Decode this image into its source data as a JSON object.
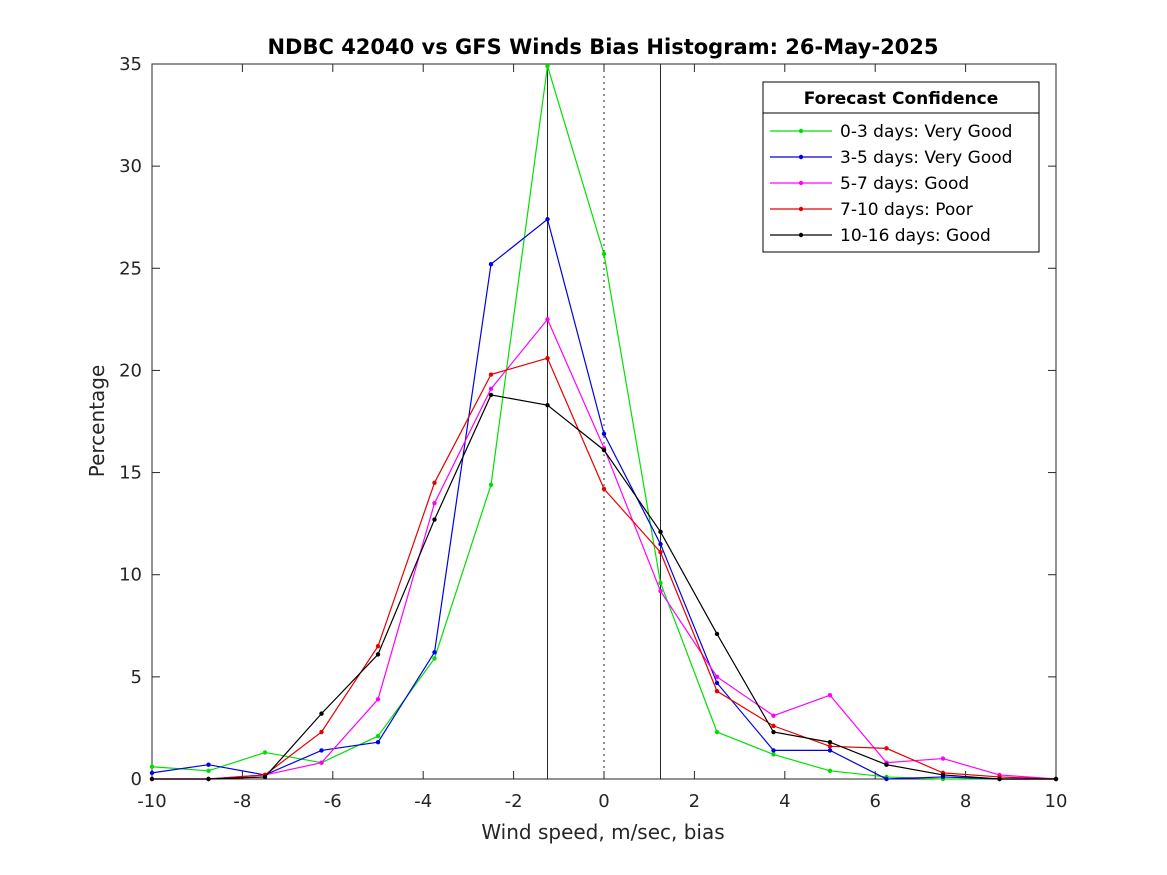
{
  "chart_data": {
    "type": "line",
    "title": "NDBC 42040 vs GFS Winds Bias Histogram: 26-May-2025",
    "xlabel": "Wind speed, m/sec, bias",
    "ylabel": "Percentage",
    "xlim": [
      -10,
      10
    ],
    "ylim": [
      0,
      35
    ],
    "xticks": [
      -10,
      -8,
      -6,
      -4,
      -2,
      0,
      2,
      4,
      6,
      8,
      10
    ],
    "yticks": [
      0,
      5,
      10,
      15,
      20,
      25,
      30,
      35
    ],
    "grid": false,
    "legend_title": "Forecast Confidence",
    "legend_position": "top-right",
    "reference_lines": [
      {
        "x": -1.25,
        "style": "solid"
      },
      {
        "x": 0,
        "style": "dotted"
      },
      {
        "x": 1.25,
        "style": "solid"
      }
    ],
    "x": [
      -10,
      -8.75,
      -7.5,
      -6.25,
      -5,
      -3.75,
      -2.5,
      -1.25,
      0,
      1.25,
      2.5,
      3.75,
      5,
      6.25,
      7.5,
      8.75,
      10
    ],
    "series": [
      {
        "name": "0-3 days: Very Good",
        "color": "#00e000",
        "values": [
          0.6,
          0.4,
          1.3,
          0.8,
          2.1,
          5.9,
          14.4,
          34.9,
          25.7,
          9.6,
          2.3,
          1.2,
          0.4,
          0.1,
          0.0,
          0.0,
          0.0
        ]
      },
      {
        "name": "3-5 days: Very Good",
        "color": "#0000e6",
        "values": [
          0.3,
          0.7,
          0.2,
          1.4,
          1.8,
          6.2,
          25.2,
          27.4,
          16.9,
          11.5,
          4.7,
          1.4,
          1.4,
          0.0,
          0.1,
          0.0,
          0.0
        ]
      },
      {
        "name": "5-7 days: Good",
        "color": "#ff00ff",
        "values": [
          0.0,
          0.0,
          0.2,
          0.8,
          3.9,
          13.5,
          19.1,
          22.5,
          16.2,
          9.2,
          5.0,
          3.1,
          4.1,
          0.8,
          1.0,
          0.2,
          0.0
        ]
      },
      {
        "name": "7-10 days: Poor",
        "color": "#e60000",
        "values": [
          0.0,
          0.0,
          0.2,
          2.3,
          6.5,
          14.5,
          19.8,
          20.6,
          14.2,
          11.1,
          4.3,
          2.6,
          1.6,
          1.5,
          0.3,
          0.1,
          0.0
        ]
      },
      {
        "name": "10-16 days: Good",
        "color": "#000000",
        "values": [
          0.0,
          0.0,
          0.1,
          3.2,
          6.1,
          12.7,
          18.8,
          18.3,
          16.1,
          12.1,
          7.1,
          2.3,
          1.8,
          0.7,
          0.2,
          0.0,
          0.0
        ]
      }
    ]
  }
}
